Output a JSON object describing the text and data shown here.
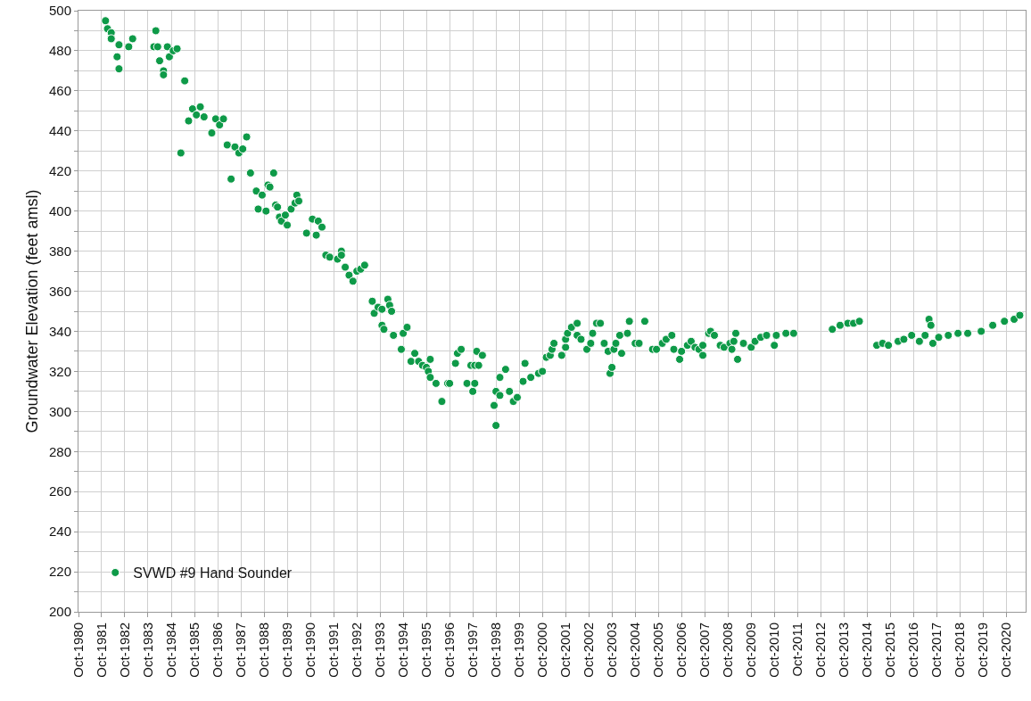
{
  "chart_data": {
    "type": "scatter",
    "ylabel": "Groundwater Elevation (feet amsl)",
    "legend": "bottom left",
    "grid": true,
    "marker": "circle",
    "xlim": [
      "1980-10",
      "2021-08"
    ],
    "ylim": [
      200,
      500
    ],
    "xticks": [
      {
        "value": "1980-10",
        "label": "Oct-1980"
      },
      {
        "value": "1981-10",
        "label": "Oct-1981"
      },
      {
        "value": "1982-10",
        "label": "Oct-1982"
      },
      {
        "value": "1983-10",
        "label": "Oct-1983"
      },
      {
        "value": "1984-10",
        "label": "Oct-1984"
      },
      {
        "value": "1985-10",
        "label": "Oct-1985"
      },
      {
        "value": "1986-10",
        "label": "Oct-1986"
      },
      {
        "value": "1987-10",
        "label": "Oct-1987"
      },
      {
        "value": "1988-10",
        "label": "Oct-1988"
      },
      {
        "value": "1989-10",
        "label": "Oct-1989"
      },
      {
        "value": "1990-10",
        "label": "Oct-1990"
      },
      {
        "value": "1991-10",
        "label": "Oct-1991"
      },
      {
        "value": "1992-10",
        "label": "Oct-1992"
      },
      {
        "value": "1993-10",
        "label": "Oct-1993"
      },
      {
        "value": "1994-10",
        "label": "Oct-1994"
      },
      {
        "value": "1995-10",
        "label": "Oct-1995"
      },
      {
        "value": "1996-10",
        "label": "Oct-1996"
      },
      {
        "value": "1997-10",
        "label": "Oct-1997"
      },
      {
        "value": "1998-10",
        "label": "Oct-1998"
      },
      {
        "value": "1999-10",
        "label": "Oct-1999"
      },
      {
        "value": "2000-10",
        "label": "Oct-2000"
      },
      {
        "value": "2001-10",
        "label": "Oct-2001"
      },
      {
        "value": "2002-10",
        "label": "Oct-2002"
      },
      {
        "value": "2003-10",
        "label": "Oct-2003"
      },
      {
        "value": "2004-10",
        "label": "Oct-2004"
      },
      {
        "value": "2005-10",
        "label": "Oct-2005"
      },
      {
        "value": "2006-10",
        "label": "Oct-2006"
      },
      {
        "value": "2007-10",
        "label": "Oct-2007"
      },
      {
        "value": "2008-10",
        "label": "Oct-2008"
      },
      {
        "value": "2009-10",
        "label": "Oct-2009"
      },
      {
        "value": "2010-10",
        "label": "Oct-2010"
      },
      {
        "value": "2011-10",
        "label": "Oct-2011"
      },
      {
        "value": "2012-10",
        "label": "Oct-2012"
      },
      {
        "value": "2013-10",
        "label": "Oct-2013"
      },
      {
        "value": "2014-10",
        "label": "Oct-2014"
      },
      {
        "value": "2015-10",
        "label": "Oct-2015"
      },
      {
        "value": "2016-10",
        "label": "Oct-2016"
      },
      {
        "value": "2017-10",
        "label": "Oct-2017"
      },
      {
        "value": "2018-10",
        "label": "Oct-2018"
      },
      {
        "value": "2019-10",
        "label": "Oct-2019"
      },
      {
        "value": "2020-10",
        "label": "Oct-2020"
      }
    ],
    "yticks": [
      200,
      {
        "value": 210,
        "label": null
      },
      220,
      {
        "value": 230,
        "label": null
      },
      240,
      {
        "value": 250,
        "label": null
      },
      260,
      {
        "value": 270,
        "label": null
      },
      280,
      {
        "value": 290,
        "label": null
      },
      300,
      {
        "value": 310,
        "label": null
      },
      320,
      {
        "value": 330,
        "label": null
      },
      340,
      {
        "value": 350,
        "label": null
      },
      360,
      {
        "value": 370,
        "label": null
      },
      380,
      {
        "value": 390,
        "label": null
      },
      400,
      {
        "value": 410,
        "label": null
      },
      420,
      {
        "value": 430,
        "label": null
      },
      440,
      {
        "value": 450,
        "label": null
      },
      460,
      {
        "value": 470,
        "label": null
      },
      480,
      {
        "value": 490,
        "label": null
      },
      500
    ],
    "series": [
      {
        "name": "SVWD #9 Hand Sounder",
        "color": "#0e9a48",
        "x": [
          "1981-12",
          "1982-01",
          "1982-03",
          "1982-03",
          "1982-06",
          "1982-07",
          "1982-07",
          "1982-12",
          "1983-02",
          "1984-02",
          "1984-01",
          "1984-03",
          "1984-04",
          "1984-06",
          "1984-06",
          "1984-08",
          "1984-09",
          "1984-11",
          "1985-01",
          "1985-03",
          "1985-05",
          "1985-07",
          "1985-09",
          "1985-11",
          "1986-01",
          "1986-03",
          "1986-07",
          "1986-09",
          "1986-11",
          "1987-01",
          "1987-03",
          "1987-05",
          "1987-07",
          "1987-09",
          "1987-11",
          "1988-01",
          "1988-03",
          "1988-06",
          "1988-07",
          "1988-09",
          "1988-11",
          "1988-12",
          "1989-01",
          "1989-03",
          "1989-04",
          "1989-05",
          "1989-06",
          "1989-07",
          "1989-09",
          "1989-10",
          "1989-12",
          "1990-02",
          "1990-03",
          "1990-04",
          "1990-08",
          "1990-11",
          "1991-01",
          "1991-02",
          "1991-04",
          "1991-06",
          "1991-08",
          "1991-12",
          "1992-02",
          "1992-02",
          "1992-04",
          "1992-06",
          "1992-08",
          "1992-10",
          "1992-12",
          "1993-02",
          "1993-06",
          "1993-07",
          "1993-09",
          "1993-11",
          "1993-11",
          "1993-12",
          "1994-02",
          "1994-03",
          "1994-04",
          "1994-05",
          "1994-09",
          "1994-10",
          "1994-12",
          "1995-02",
          "1995-04",
          "1995-06",
          "1995-08",
          "1995-10",
          "1995-11",
          "1995-12",
          "1995-12",
          "1996-03",
          "1996-06",
          "1996-09",
          "1996-10",
          "1997-01",
          "1997-02",
          "1997-04",
          "1997-07",
          "1997-09",
          "1997-10",
          "1997-11",
          "1997-11",
          "1997-12",
          "1998-01",
          "1998-03",
          "1998-09",
          "1998-10",
          "1998-10",
          "1998-12",
          "1998-12",
          "1999-03",
          "1999-05",
          "1999-07",
          "1999-09",
          "1999-12",
          "2000-01",
          "2000-04",
          "2000-08",
          "2000-10",
          "2000-12",
          "2001-02",
          "2001-03",
          "2001-04",
          "2001-08",
          "2001-10",
          "2001-10",
          "2001-11",
          "2002-01",
          "2002-04",
          "2002-04",
          "2002-06",
          "2002-09",
          "2002-11",
          "2002-12",
          "2003-02",
          "2003-04",
          "2003-06",
          "2003-08",
          "2003-09",
          "2003-10",
          "2003-11",
          "2003-12",
          "2004-02",
          "2004-03",
          "2004-06",
          "2004-07",
          "2004-10",
          "2004-12",
          "2005-03",
          "2005-07",
          "2005-09",
          "2005-12",
          "2006-02",
          "2006-05",
          "2006-06",
          "2006-09",
          "2006-10",
          "2007-01",
          "2007-03",
          "2007-05",
          "2007-07",
          "2007-09",
          "2007-09",
          "2007-12",
          "2008-01",
          "2008-03",
          "2008-06",
          "2008-08",
          "2008-11",
          "2008-12",
          "2009-01",
          "2009-02",
          "2009-03",
          "2009-06",
          "2009-10",
          "2009-12",
          "2010-03",
          "2010-06",
          "2010-10",
          "2010-11",
          "2011-04",
          "2011-08",
          "2013-04",
          "2013-08",
          "2013-12",
          "2014-03",
          "2014-06",
          "2015-03",
          "2015-06",
          "2015-09",
          "2016-02",
          "2016-05",
          "2016-09",
          "2017-01",
          "2017-04",
          "2017-06",
          "2017-07",
          "2017-08",
          "2017-11",
          "2018-04",
          "2018-09",
          "2019-02",
          "2019-09",
          "2020-03",
          "2020-09",
          "2021-02",
          "2021-05"
        ],
        "values": [
          495,
          491,
          489,
          486,
          477,
          471,
          483,
          482,
          486,
          490,
          482,
          482,
          475,
          470,
          468,
          482,
          477,
          480,
          481,
          429,
          465,
          445,
          451,
          448,
          452,
          447,
          439,
          446,
          443,
          446,
          433,
          416,
          432,
          429,
          431,
          437,
          419,
          410,
          401,
          408,
          400,
          413,
          412,
          419,
          403,
          402,
          397,
          395,
          398,
          393,
          401,
          404,
          408,
          405,
          389,
          396,
          388,
          395,
          392,
          378,
          377,
          376,
          380,
          378,
          372,
          368,
          365,
          370,
          371,
          373,
          355,
          349,
          352,
          343,
          351,
          341,
          356,
          353,
          350,
          338,
          331,
          339,
          342,
          325,
          329,
          325,
          323,
          322,
          320,
          317,
          326,
          314,
          305,
          314,
          314,
          324,
          329,
          331,
          314,
          323,
          310,
          323,
          314,
          330,
          323,
          328,
          303,
          293,
          310,
          308,
          317,
          321,
          310,
          305,
          307,
          315,
          324,
          317,
          319,
          320,
          327,
          328,
          331,
          334,
          328,
          332,
          336,
          339,
          342,
          344,
          338,
          336,
          331,
          334,
          339,
          344,
          344,
          334,
          330,
          319,
          322,
          331,
          334,
          338,
          329,
          339,
          345,
          334,
          334,
          345,
          331,
          331,
          334,
          336,
          338,
          331,
          326,
          330,
          333,
          335,
          332,
          331,
          328,
          333,
          339,
          340,
          338,
          333,
          332,
          334,
          331,
          335,
          339,
          326,
          334,
          332,
          335,
          337,
          338,
          333,
          338,
          339,
          339,
          341,
          343,
          344,
          344,
          345,
          333,
          334,
          333,
          335,
          336,
          338,
          335,
          338,
          346,
          343,
          334,
          337,
          338,
          339,
          339,
          340,
          343,
          345,
          346,
          348
        ]
      }
    ]
  }
}
